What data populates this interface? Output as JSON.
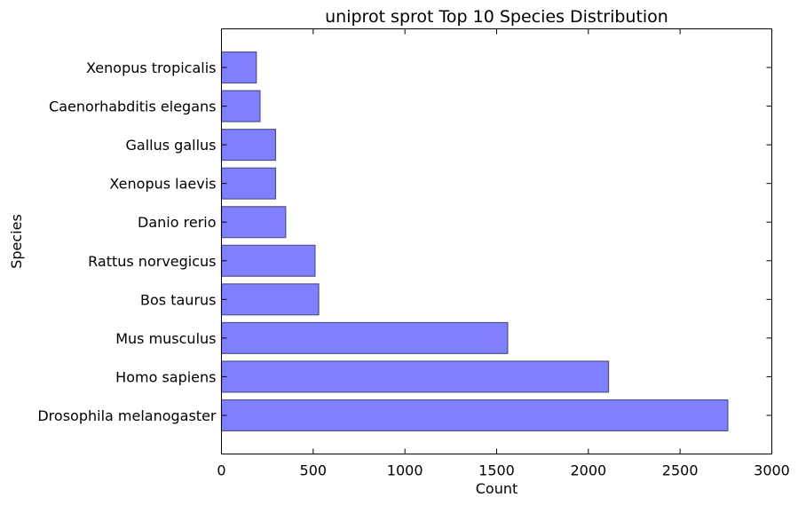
{
  "chart_data": {
    "type": "bar",
    "orientation": "horizontal",
    "title": "uniprot sprot Top 10 Species Distribution",
    "xlabel": "Count",
    "ylabel": "Species",
    "categories": [
      "Drosophila melanogaster",
      "Homo sapiens",
      "Mus musculus",
      "Bos taurus",
      "Rattus norvegicus",
      "Danio rerio",
      "Xenopus laevis",
      "Gallus gallus",
      "Caenorhabditis elegans",
      "Xenopus tropicalis"
    ],
    "values": [
      2760,
      2110,
      1560,
      530,
      510,
      350,
      295,
      295,
      210,
      190
    ],
    "xlim": [
      0,
      3000
    ],
    "xticks": [
      0,
      500,
      1000,
      1500,
      2000,
      2500,
      3000
    ],
    "grid": false,
    "bar_color": "#8080ff",
    "bar_edge_color": "#50508a"
  }
}
